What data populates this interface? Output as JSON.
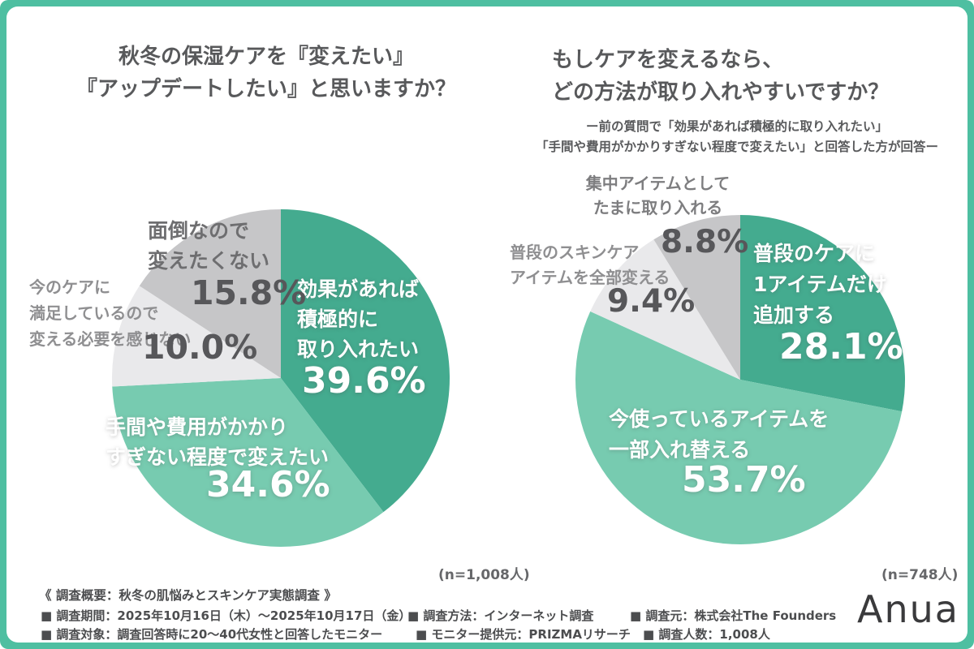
{
  "frame": {
    "border_color": "#4EBFA1",
    "card_color": "#ffffff"
  },
  "left_chart": {
    "title": "秋冬の保湿ケアを『変えたい』\n『アップデートしたい』と思いますか？",
    "sample_size": "(n=1,008人)"
  },
  "right_chart": {
    "title": "もしケアを変えるなら、\nどの方法が取り入れやすいですか？",
    "subtitle": "ー前の質問で「効果があれば積極的に取り入れたい」\n「手間や費用がかかりすぎない程度で変えたい」と回答した方が回答ー",
    "sample_size": "(n=748人)"
  },
  "chart_data": [
    {
      "type": "pie",
      "title": "秋冬の保湿ケアを『変えたい』『アップデートしたい』と思いますか？",
      "n": 1008,
      "start_angle_deg": 0,
      "direction": "clockwise",
      "slices": [
        {
          "label": "効果があれば積極的に取り入れたい",
          "value_pct": 39.6,
          "color": "#44AB8F",
          "display_label": "効果があれば\n積極的に\n取り入れたい",
          "display_pct": "39.6%"
        },
        {
          "label": "手間や費用がかかりすぎない程度で変えたい",
          "value_pct": 34.6,
          "color": "#77CBB0",
          "display_label": "手間や費用がかかり\nすぎない程度で変えたい",
          "display_pct": "34.6%"
        },
        {
          "label": "今のケアに満足しているので変える必要を感じない",
          "value_pct": 10.0,
          "color": "#E9E9EB",
          "display_label": "今のケアに\n満足しているので\n変える必要を感じない",
          "display_pct": "10.0%"
        },
        {
          "label": "面倒なので変えたくない",
          "value_pct": 15.8,
          "color": "#C6C6C8",
          "display_label": "面倒なので\n変えたくない",
          "display_pct": "15.8%"
        }
      ]
    },
    {
      "type": "pie",
      "title": "もしケアを変えるなら、どの方法が取り入れやすいですか？",
      "n": 748,
      "start_angle_deg": 0,
      "direction": "clockwise",
      "slices": [
        {
          "label": "普段のケアに1アイテムだけ追加する",
          "value_pct": 28.1,
          "color": "#44AB8F",
          "display_label": "普段のケアに\n1アイテムだけ\n追加する",
          "display_pct": "28.1%"
        },
        {
          "label": "今使っているアイテムを一部入れ替える",
          "value_pct": 53.7,
          "color": "#77CBB0",
          "display_label": "今使っているアイテムを\n一部入れ替える",
          "display_pct": "53.7%"
        },
        {
          "label": "普段のスキンケアアイテムを全部変える",
          "value_pct": 9.4,
          "color": "#E9E9EB",
          "display_label": "普段のスキンケア\nアイテムを全部変える",
          "display_pct": "9.4%"
        },
        {
          "label": "集中アイテムとしてたまに取り入れる",
          "value_pct": 8.8,
          "color": "#C6C6C8",
          "display_label": "集中アイテムとして\nたまに取り入れる",
          "display_pct": "8.8%"
        }
      ]
    }
  ],
  "footer": {
    "survey_overview": "《 調査概要：秋冬の肌悩みとスキンケア実態調査 》",
    "period": "■ 調査期間：2025年10月16日（木）〜2025年10月17日（金）",
    "target": "■ 調査対象：調査回答時に20〜40代女性と回答したモニター",
    "method": "■ 調査方法：インターネット調査",
    "monitor_provider": "■ モニター提供元：PRIZMAリサーチ",
    "conductor": "■ 調査元：株式会社The Founders",
    "respondents": "■ 調査人数：1,008人",
    "brand_logo": "Anua"
  }
}
